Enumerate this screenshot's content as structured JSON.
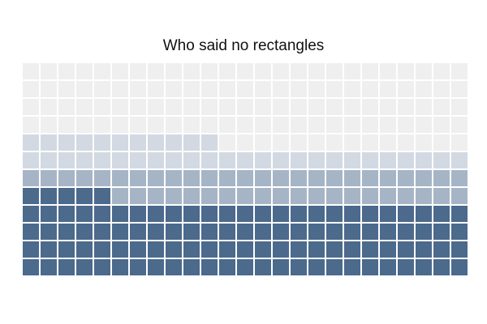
{
  "chart_data": {
    "type": "waffle",
    "title": "Who said no rectangles",
    "grid": {
      "rows": 12,
      "cols": 25,
      "fill_order": "row-wise from bottom-left"
    },
    "categories": [
      {
        "name": "",
        "count": 105,
        "color": "#4b6a8c"
      },
      {
        "name": "",
        "count": 45,
        "color": "#a6b5c6"
      },
      {
        "name": "",
        "count": 36,
        "color": "#d2d9e2"
      },
      {
        "name": "",
        "count": 114,
        "color": "#efefef"
      }
    ],
    "legend": "none"
  }
}
